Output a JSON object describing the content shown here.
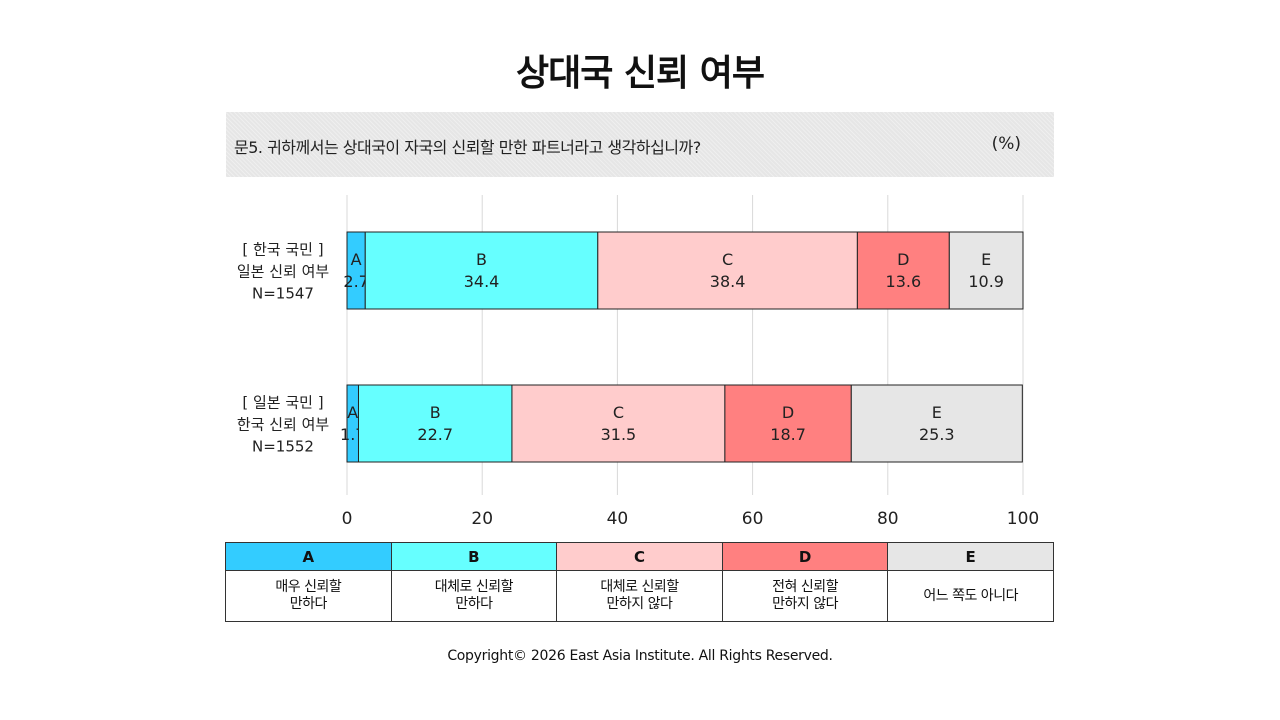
{
  "title": "상대국 신뢰 여부",
  "question": "문5. 귀하께서는 상대국이 자국의 신뢰할 만한 파트너라고 생각하십니까?",
  "unit": "(%)",
  "chart_data": {
    "type": "bar",
    "orientation": "horizontal",
    "stacked": true,
    "categories": [
      [
        "[ 한국 국민 ]",
        "일본 신뢰 여부",
        "N=1547"
      ],
      [
        "[ 일본 국민 ]",
        "한국 신뢰 여부",
        "N=1552"
      ]
    ],
    "series": [
      {
        "name": "A",
        "values": [
          2.7,
          1.7
        ],
        "color": "#33ccff"
      },
      {
        "name": "B",
        "values": [
          34.4,
          22.7
        ],
        "color": "#66ffff"
      },
      {
        "name": "C",
        "values": [
          38.4,
          31.5
        ],
        "color": "#ffcccc"
      },
      {
        "name": "D",
        "values": [
          13.6,
          18.7
        ],
        "color": "#ff8080"
      },
      {
        "name": "E",
        "values": [
          10.9,
          25.3
        ],
        "color": "#e6e6e6"
      }
    ],
    "xlim": [
      0,
      100
    ],
    "xticks": [
      0,
      20,
      40,
      60,
      80,
      100
    ],
    "grid": true
  },
  "legend": [
    {
      "key": "A",
      "label": "매우 신뢰할\n만하다",
      "color": "#33ccff"
    },
    {
      "key": "B",
      "label": "대체로 신뢰할\n만하다",
      "color": "#66ffff"
    },
    {
      "key": "C",
      "label": "대체로 신뢰할\n만하지 않다",
      "color": "#ffcccc"
    },
    {
      "key": "D",
      "label": "전혀 신뢰할\n만하지 않다",
      "color": "#ff8080"
    },
    {
      "key": "E",
      "label": "어느 쪽도 아니다",
      "color": "#e6e6e6"
    }
  ],
  "copyright": "Copyright© 2026 East Asia Institute. All Rights Reserved."
}
